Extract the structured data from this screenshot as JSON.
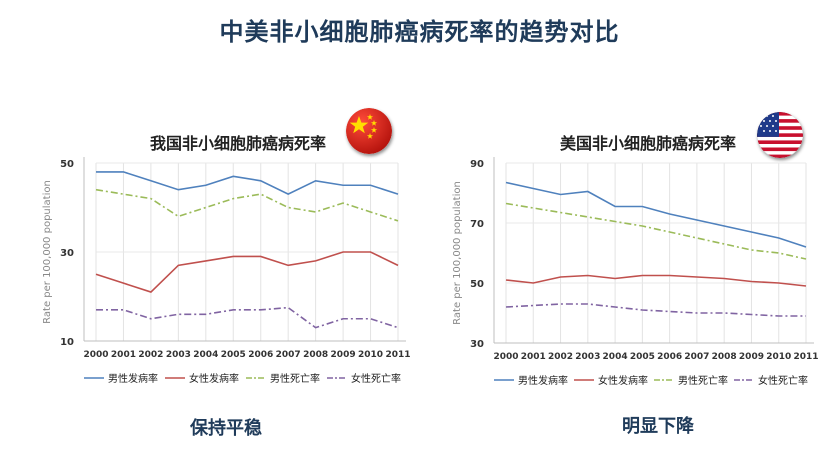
{
  "page": {
    "title": "中美非小细胞肺癌病死率的趋势对比"
  },
  "colors": {
    "male_incidence": "#4f81bd",
    "female_incidence": "#c0504d",
    "male_mortality": "#9bbb59",
    "female_mortality": "#8064a2",
    "title": "#1f3b5a"
  },
  "left": {
    "heading": "我国非小细胞肺癌病死率",
    "flag_icon": "china-flag-icon",
    "caption": "保持平稳"
  },
  "right": {
    "heading": "美国非小细胞肺癌病死率",
    "flag_icon": "usa-flag-icon",
    "caption": "明显下降"
  },
  "chart_data": [
    {
      "type": "line",
      "title": "我国非小细胞肺癌病死率",
      "ylabel": "Rate per 100,000 population",
      "xlabel": "",
      "x": [
        "2000",
        "2001",
        "2002",
        "2003",
        "2004",
        "2005",
        "2006",
        "2007",
        "2008",
        "2009",
        "2010",
        "2011"
      ],
      "ylim": [
        10,
        50
      ],
      "yticks": [
        10,
        30,
        50
      ],
      "grid": true,
      "legend": "bottom",
      "series": [
        {
          "name": "男性发病率",
          "style": "solid",
          "values": [
            48,
            48,
            46,
            44,
            45,
            47,
            46,
            43,
            46,
            45,
            45,
            43
          ]
        },
        {
          "name": "女性发病率",
          "style": "solid",
          "values": [
            25,
            23,
            21,
            27,
            28,
            29,
            29,
            27,
            28,
            30,
            30,
            27
          ]
        },
        {
          "name": "男性死亡率",
          "style": "dashdot",
          "values": [
            44,
            43,
            42,
            38,
            40,
            42,
            43,
            40,
            39,
            41,
            39,
            37
          ]
        },
        {
          "name": "女性死亡率",
          "style": "dashdot",
          "values": [
            17,
            17,
            15,
            16,
            16,
            17,
            17,
            17.5,
            13,
            15,
            15,
            13
          ]
        }
      ]
    },
    {
      "type": "line",
      "title": "美国非小细胞肺癌病死率",
      "ylabel": "Rate per 100,000 population",
      "xlabel": "",
      "x": [
        "2000",
        "2001",
        "2002",
        "2003",
        "2004",
        "2005",
        "2006",
        "2007",
        "2008",
        "2009",
        "2010",
        "2011"
      ],
      "ylim": [
        30,
        90
      ],
      "yticks": [
        30,
        50,
        70,
        90
      ],
      "grid": true,
      "legend": "bottom",
      "series": [
        {
          "name": "男性发病率",
          "style": "solid",
          "values": [
            83.5,
            81.5,
            79.5,
            80.5,
            75.5,
            75.5,
            73,
            71,
            69,
            67,
            65,
            62
          ]
        },
        {
          "name": "女性发病率",
          "style": "solid",
          "values": [
            51,
            50,
            52,
            52.5,
            51.5,
            52.5,
            52.5,
            52,
            51.5,
            50.5,
            50,
            49
          ]
        },
        {
          "name": "男性死亡率",
          "style": "dashdot",
          "values": [
            76.5,
            75,
            73.5,
            72,
            70.5,
            69,
            67,
            65,
            63,
            61,
            60,
            58
          ]
        },
        {
          "name": "女性死亡率",
          "style": "dashdot",
          "values": [
            42,
            42.5,
            43,
            43,
            42,
            41,
            40.5,
            40,
            40,
            39.5,
            39,
            39
          ]
        }
      ]
    }
  ]
}
